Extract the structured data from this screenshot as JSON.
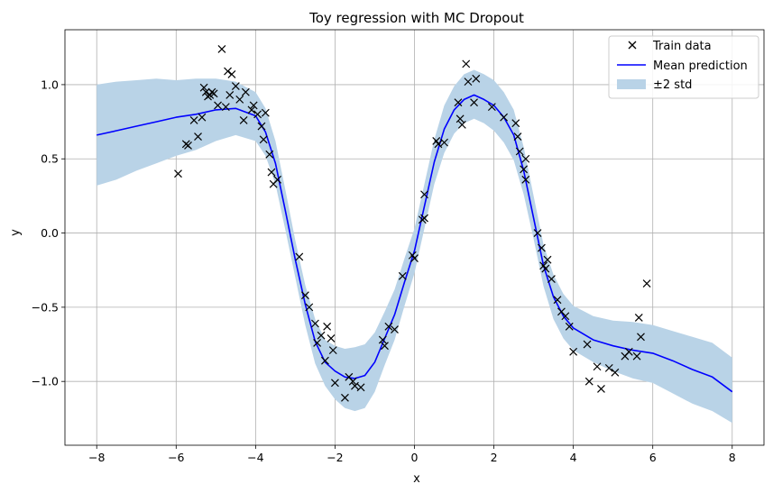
{
  "chart_data": {
    "type": "line",
    "title": "Toy regression with MC Dropout",
    "xlabel": "x",
    "ylabel": "y",
    "xlim": [
      -8.8,
      8.8
    ],
    "ylim": [
      -1.43,
      1.37
    ],
    "xticks": [
      -8,
      -6,
      -4,
      -2,
      0,
      2,
      4,
      6,
      8
    ],
    "yticks": [
      -1.0,
      -0.5,
      0.0,
      0.5,
      1.0
    ],
    "xtick_labels": [
      "−8",
      "−6",
      "−4",
      "−2",
      "0",
      "2",
      "4",
      "6",
      "8"
    ],
    "ytick_labels": [
      "−1.0",
      "−0.5",
      "0.0",
      "0.5",
      "1.0"
    ],
    "grid": true,
    "legend_position": "top-right",
    "colors": {
      "train": "#000000",
      "mean": "#0000ff",
      "band": "#b9d3e7"
    },
    "legend": [
      {
        "label": "Train data",
        "marker": "x",
        "color": "#000000"
      },
      {
        "label": "Mean prediction",
        "marker": "line",
        "color": "#0000ff"
      },
      {
        "label": "±2 std",
        "marker": "patch",
        "color": "#b9d3e7"
      }
    ],
    "mean_prediction": {
      "name": "Mean prediction",
      "x": [
        -8.0,
        -7.5,
        -7.0,
        -6.5,
        -6.0,
        -5.5,
        -5.0,
        -4.5,
        -4.0,
        -3.75,
        -3.5,
        -3.25,
        -3.0,
        -2.75,
        -2.5,
        -2.25,
        -2.0,
        -1.75,
        -1.5,
        -1.25,
        -1.0,
        -0.75,
        -0.5,
        -0.25,
        0.0,
        0.25,
        0.5,
        0.75,
        1.0,
        1.25,
        1.5,
        1.75,
        2.0,
        2.25,
        2.5,
        2.75,
        3.0,
        3.25,
        3.5,
        3.75,
        4.0,
        4.5,
        5.0,
        5.5,
        6.0,
        6.5,
        7.0,
        7.5,
        8.0
      ],
      "y": [
        0.66,
        0.69,
        0.72,
        0.75,
        0.78,
        0.8,
        0.83,
        0.84,
        0.79,
        0.68,
        0.47,
        0.15,
        -0.18,
        -0.48,
        -0.73,
        -0.87,
        -0.93,
        -0.97,
        -0.98,
        -0.96,
        -0.87,
        -0.71,
        -0.55,
        -0.33,
        -0.12,
        0.18,
        0.48,
        0.7,
        0.83,
        0.9,
        0.93,
        0.9,
        0.86,
        0.78,
        0.66,
        0.42,
        0.1,
        -0.22,
        -0.43,
        -0.56,
        -0.64,
        -0.72,
        -0.76,
        -0.79,
        -0.81,
        -0.86,
        -0.92,
        -0.97,
        -1.07
      ]
    },
    "band": {
      "name": "±2 std",
      "x": [
        -8.0,
        -7.5,
        -7.0,
        -6.5,
        -6.0,
        -5.5,
        -5.0,
        -4.5,
        -4.0,
        -3.75,
        -3.5,
        -3.25,
        -3.0,
        -2.75,
        -2.5,
        -2.25,
        -2.0,
        -1.75,
        -1.5,
        -1.25,
        -1.0,
        -0.75,
        -0.5,
        -0.25,
        0.0,
        0.25,
        0.5,
        0.75,
        1.0,
        1.25,
        1.5,
        1.75,
        2.0,
        2.25,
        2.5,
        2.75,
        3.0,
        3.25,
        3.5,
        3.75,
        4.0,
        4.5,
        5.0,
        5.5,
        6.0,
        6.5,
        7.0,
        7.5,
        8.0
      ],
      "lower": [
        0.32,
        0.36,
        0.42,
        0.47,
        0.52,
        0.56,
        0.62,
        0.66,
        0.62,
        0.52,
        0.33,
        0.02,
        -0.3,
        -0.62,
        -0.88,
        -1.03,
        -1.12,
        -1.18,
        -1.2,
        -1.18,
        -1.07,
        -0.89,
        -0.72,
        -0.49,
        -0.27,
        0.03,
        0.33,
        0.54,
        0.67,
        0.74,
        0.77,
        0.74,
        0.69,
        0.61,
        0.49,
        0.26,
        -0.04,
        -0.36,
        -0.58,
        -0.71,
        -0.79,
        -0.87,
        -0.93,
        -0.98,
        -1.01,
        -1.08,
        -1.15,
        -1.2,
        -1.28
      ],
      "upper": [
        1.0,
        1.02,
        1.03,
        1.04,
        1.03,
        1.04,
        1.04,
        1.02,
        0.95,
        0.84,
        0.62,
        0.29,
        -0.05,
        -0.35,
        -0.58,
        -0.72,
        -0.76,
        -0.78,
        -0.77,
        -0.75,
        -0.67,
        -0.53,
        -0.38,
        -0.17,
        0.03,
        0.33,
        0.63,
        0.86,
        0.99,
        1.07,
        1.1,
        1.07,
        1.03,
        0.95,
        0.83,
        0.58,
        0.25,
        -0.08,
        -0.28,
        -0.41,
        -0.49,
        -0.56,
        -0.59,
        -0.6,
        -0.62,
        -0.66,
        -0.7,
        -0.74,
        -0.84
      ]
    },
    "train_data": {
      "name": "Train data",
      "x": [
        -5.95,
        -5.75,
        -5.7,
        -5.55,
        -5.45,
        -5.35,
        -5.3,
        -5.25,
        -5.2,
        -5.15,
        -5.1,
        -5.05,
        -4.95,
        -4.85,
        -4.75,
        -4.7,
        -4.65,
        -4.6,
        -4.5,
        -4.4,
        -4.3,
        -4.25,
        -4.1,
        -4.05,
        -3.95,
        -3.85,
        -3.8,
        -3.75,
        -3.65,
        -3.6,
        -3.55,
        -3.45,
        -2.9,
        -2.75,
        -2.65,
        -2.5,
        -2.45,
        -2.35,
        -2.25,
        -2.2,
        -2.1,
        -2.05,
        -2.0,
        -1.75,
        -1.65,
        -1.55,
        -1.5,
        -1.35,
        -0.8,
        -0.75,
        -0.65,
        -0.5,
        -0.3,
        -0.05,
        0.0,
        0.2,
        0.25,
        0.25,
        0.55,
        0.6,
        0.75,
        1.1,
        1.15,
        1.2,
        1.3,
        1.35,
        1.5,
        1.55,
        1.95,
        2.25,
        2.55,
        2.6,
        2.65,
        2.75,
        2.8,
        2.8,
        3.1,
        3.2,
        3.25,
        3.3,
        3.35,
        3.45,
        3.6,
        3.7,
        3.8,
        3.9,
        4.0,
        4.35,
        4.4,
        4.6,
        4.7,
        4.9,
        5.05,
        5.3,
        5.4,
        5.6,
        5.65,
        5.7,
        5.85
      ],
      "y": [
        0.4,
        0.6,
        0.59,
        0.76,
        0.65,
        0.78,
        0.98,
        0.95,
        0.92,
        0.93,
        0.95,
        0.94,
        0.86,
        1.24,
        0.85,
        1.09,
        0.93,
        1.07,
        0.99,
        0.9,
        0.76,
        0.95,
        0.83,
        0.86,
        0.8,
        0.72,
        0.63,
        0.81,
        0.53,
        0.41,
        0.33,
        0.36,
        -0.16,
        -0.42,
        -0.5,
        -0.61,
        -0.74,
        -0.69,
        -0.86,
        -0.63,
        -0.71,
        -0.79,
        -1.01,
        -1.11,
        -0.97,
        -1.0,
        -1.03,
        -1.04,
        -0.72,
        -0.76,
        -0.63,
        -0.65,
        -0.29,
        -0.15,
        -0.17,
        0.09,
        0.1,
        0.26,
        0.62,
        0.6,
        0.61,
        0.88,
        0.77,
        0.73,
        1.14,
        1.02,
        0.88,
        1.04,
        0.85,
        0.78,
        0.74,
        0.65,
        0.55,
        0.43,
        0.5,
        0.36,
        0.0,
        -0.1,
        -0.22,
        -0.24,
        -0.18,
        -0.31,
        -0.45,
        -0.53,
        -0.56,
        -0.63,
        -0.8,
        -0.75,
        -1.0,
        -0.9,
        -1.05,
        -0.91,
        -0.94,
        -0.83,
        -0.8,
        -0.83,
        -0.57,
        -0.7,
        -0.34
      ]
    }
  }
}
